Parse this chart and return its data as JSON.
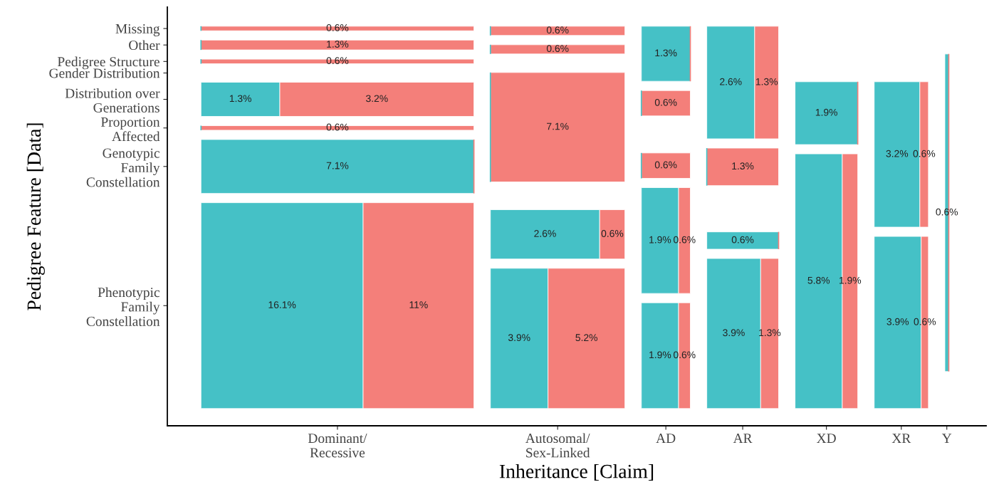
{
  "chart_data": {
    "type": "other",
    "xlabel": "Inheritance [Claim]",
    "ylabel": "Pedigree Feature [Data]",
    "categories": [
      "Dominant/\nRecessive",
      "Autosomal/\nSex-Linked",
      "AD",
      "AR",
      "XD",
      "XR",
      "Y"
    ],
    "y_categories": [
      "Missing",
      "Other",
      "Pedigree Structure",
      "Gender Distribution",
      "Distribution over\nGenerations",
      "Proportion\nAffected",
      "Genotypic\nFamily\nConstellation",
      "Phenotypic\nFamily\nConstellation"
    ],
    "series": [
      {
        "color": "#45c1c6",
        "values": [
          null,
          null,
          1.3,
          2.6,
          null,
          null,
          null
        ],
        "value_labels": [
          null,
          null,
          "1.3%",
          "2.6%",
          null,
          null,
          null
        ]
      },
      {
        "color": "#f47f7a",
        "values": [
          0.6,
          0.6,
          null,
          1.3,
          null,
          null,
          null
        ],
        "value_labels": [
          "0.6%",
          "0.6%",
          null,
          "1.3%",
          null,
          null,
          null
        ]
      },
      {
        "color": "#45c1c6",
        "values": [
          null,
          null,
          null,
          null,
          null,
          null,
          null
        ],
        "value_labels": [
          null,
          null,
          null,
          null,
          null,
          null,
          null
        ]
      },
      {
        "color": "#f47f7a",
        "values": [
          1.3,
          0.6,
          0.6,
          1.3,
          null,
          null,
          null
        ],
        "value_labels": [
          "1.3%",
          "0.6%",
          "0.6%",
          "1.3%",
          null,
          null,
          null
        ]
      },
      {
        "color": "#45c1c6",
        "values": [
          null,
          null,
          null,
          null,
          null,
          null,
          null
        ],
        "value_labels": [
          null,
          null,
          null,
          null,
          null,
          null,
          null
        ]
      },
      {
        "color": "#f47f7a",
        "values": [
          0.6,
          null,
          null,
          null,
          null,
          null,
          null
        ],
        "value_labels": [
          "0.6%",
          null,
          null,
          null,
          null,
          null,
          null
        ]
      },
      {
        "color": "#45c1c6",
        "values": [
          null,
          null,
          null,
          null,
          null,
          null,
          0.6
        ],
        "value_labels": [
          null,
          null,
          null,
          null,
          null,
          null,
          "0.6%"
        ]
      },
      {
        "color": "#f47f7a",
        "values": [
          null,
          7.1,
          null,
          null,
          null,
          null,
          null
        ],
        "value_labels": [
          null,
          "7.1%",
          null,
          null,
          null,
          null,
          null
        ]
      },
      {
        "color": "#45c1c6",
        "values": [
          1.3,
          null,
          null,
          null,
          null,
          null,
          null
        ],
        "value_labels": [
          "1.3%",
          null,
          null,
          null,
          null,
          null,
          null
        ]
      },
      {
        "color": "#f47f7a",
        "values": [
          3.2,
          null,
          null,
          null,
          null,
          null,
          null
        ],
        "value_labels": [
          "3.2%",
          null,
          null,
          null,
          null,
          null,
          null
        ]
      },
      {
        "color": "#45c1c6",
        "values": [
          null,
          null,
          null,
          null,
          null,
          null,
          null
        ],
        "value_labels": [
          null,
          null,
          null,
          null,
          null,
          null,
          null
        ]
      },
      {
        "color": "#f47f7a",
        "values": [
          0.6,
          null,
          0.6,
          null,
          null,
          null,
          null
        ],
        "value_labels": [
          "0.6%",
          null,
          "0.6%",
          null,
          null,
          null,
          null
        ]
      },
      {
        "color": "#45c1c6",
        "values": [
          7.1,
          2.6,
          1.9,
          0.6,
          1.9,
          3.2,
          null
        ],
        "value_labels": [
          "7.1%",
          "2.6%",
          "1.9%",
          "0.6%",
          "1.9%",
          "3.2%",
          null
        ]
      },
      {
        "color": "#f47f7a",
        "values": [
          null,
          0.6,
          0.6,
          null,
          null,
          0.6,
          null
        ],
        "value_labels": [
          null,
          "0.6%",
          "0.6%",
          null,
          null,
          "0.6%",
          null
        ]
      },
      {
        "color": "#45c1c6",
        "values": [
          16.1,
          3.9,
          1.9,
          3.9,
          5.8,
          3.9,
          null
        ],
        "value_labels": [
          "16.1%",
          "3.9%",
          "1.9%",
          "3.9%",
          "5.8%",
          "3.9%",
          null
        ]
      },
      {
        "color": "#f47f7a",
        "values": [
          11,
          5.2,
          0.6,
          1.3,
          1.9,
          0.6,
          null
        ],
        "value_labels": [
          "11%",
          "5.2%",
          "0.6%",
          "1.3%",
          "1.9%",
          "0.6%",
          null
        ]
      }
    ]
  }
}
